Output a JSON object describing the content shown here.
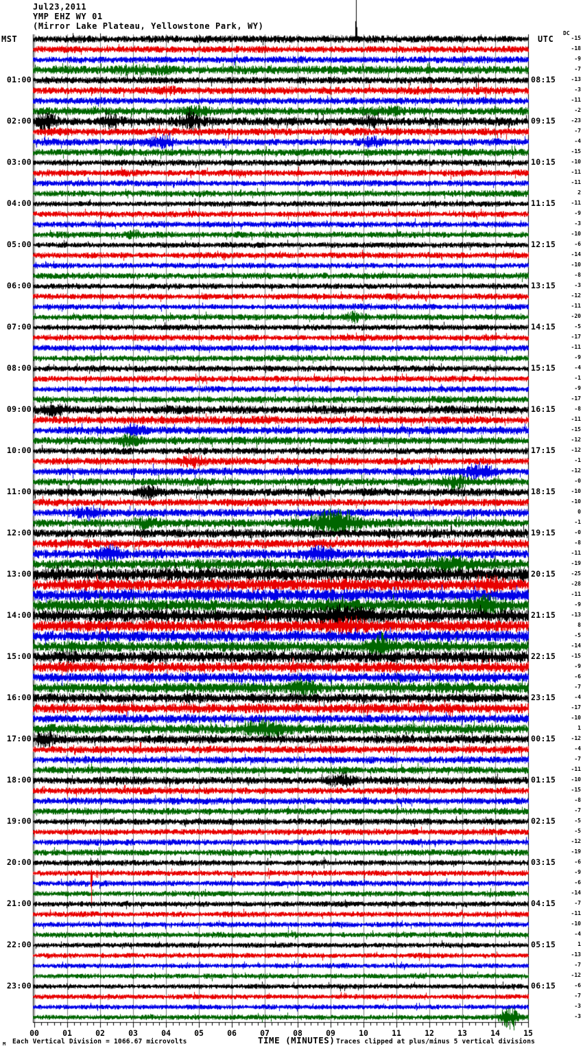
{
  "header": {
    "date": "Jul23,2011",
    "station": "YMP EHZ WY 01",
    "location": "(Mirror Lake Plateau, Yellowstone Park, WY)",
    "left_tz": "MST",
    "right_tz": "UTC",
    "dc_label": "DC"
  },
  "axis": {
    "title": "TIME (MINUTES)",
    "tick_labels": [
      "00",
      "01",
      "02",
      "03",
      "04",
      "05",
      "06",
      "07",
      "08",
      "09",
      "10",
      "11",
      "12",
      "13",
      "14",
      "15"
    ]
  },
  "footer": {
    "corner_mark": "M",
    "left_note": "Each Vertical Division = 1066.67 microvolts",
    "right_note": "Traces clipped at plus/minus 5 vertical divisions"
  },
  "chart_data": {
    "type": "seismogram_helicorder",
    "station": "YMP EHZ WY 01",
    "minutes_per_line": 15,
    "x_range_minutes": [
      0,
      15
    ],
    "lines": 96,
    "grid_on": true,
    "grid_color": "#7a7a7a",
    "colors_cycle": [
      "#000000",
      "#e80000",
      "#0000e8",
      "#006600"
    ],
    "rows": [
      {
        "mst": "",
        "utc": "",
        "dc": "-15"
      },
      {
        "mst": "",
        "utc": "",
        "dc": "-18"
      },
      {
        "mst": "",
        "utc": "",
        "dc": "-9"
      },
      {
        "mst": "",
        "utc": "",
        "dc": "-7"
      },
      {
        "mst": "01:00",
        "utc": "08:15",
        "dc": "-13"
      },
      {
        "mst": "",
        "utc": "",
        "dc": "-3"
      },
      {
        "mst": "",
        "utc": "",
        "dc": "-11"
      },
      {
        "mst": "",
        "utc": "",
        "dc": "-2"
      },
      {
        "mst": "02:00",
        "utc": "09:15",
        "dc": "-23"
      },
      {
        "mst": "",
        "utc": "",
        "dc": "-7"
      },
      {
        "mst": "",
        "utc": "",
        "dc": "-4"
      },
      {
        "mst": "",
        "utc": "",
        "dc": "-15"
      },
      {
        "mst": "03:00",
        "utc": "10:15",
        "dc": "-10"
      },
      {
        "mst": "",
        "utc": "",
        "dc": "-11"
      },
      {
        "mst": "",
        "utc": "",
        "dc": "-11"
      },
      {
        "mst": "",
        "utc": "",
        "dc": "2"
      },
      {
        "mst": "04:00",
        "utc": "11:15",
        "dc": "-11"
      },
      {
        "mst": "",
        "utc": "",
        "dc": "-9"
      },
      {
        "mst": "",
        "utc": "",
        "dc": "-3"
      },
      {
        "mst": "",
        "utc": "",
        "dc": "-10"
      },
      {
        "mst": "05:00",
        "utc": "12:15",
        "dc": "-6"
      },
      {
        "mst": "",
        "utc": "",
        "dc": "-14"
      },
      {
        "mst": "",
        "utc": "",
        "dc": "-10"
      },
      {
        "mst": "",
        "utc": "",
        "dc": "-8"
      },
      {
        "mst": "06:00",
        "utc": "13:15",
        "dc": "-3"
      },
      {
        "mst": "",
        "utc": "",
        "dc": "-12"
      },
      {
        "mst": "",
        "utc": "",
        "dc": "-11"
      },
      {
        "mst": "",
        "utc": "",
        "dc": "-20"
      },
      {
        "mst": "07:00",
        "utc": "14:15",
        "dc": "-5"
      },
      {
        "mst": "",
        "utc": "",
        "dc": "-17"
      },
      {
        "mst": "",
        "utc": "",
        "dc": "-11"
      },
      {
        "mst": "",
        "utc": "",
        "dc": "-9"
      },
      {
        "mst": "08:00",
        "utc": "15:15",
        "dc": "-4"
      },
      {
        "mst": "",
        "utc": "",
        "dc": "-1"
      },
      {
        "mst": "",
        "utc": "",
        "dc": "-9"
      },
      {
        "mst": "",
        "utc": "",
        "dc": "-17"
      },
      {
        "mst": "09:00",
        "utc": "16:15",
        "dc": "-8"
      },
      {
        "mst": "",
        "utc": "",
        "dc": "-11"
      },
      {
        "mst": "",
        "utc": "",
        "dc": "-15"
      },
      {
        "mst": "",
        "utc": "",
        "dc": "-12"
      },
      {
        "mst": "10:00",
        "utc": "17:15",
        "dc": "-12"
      },
      {
        "mst": "",
        "utc": "",
        "dc": "-1"
      },
      {
        "mst": "",
        "utc": "",
        "dc": "-12"
      },
      {
        "mst": "",
        "utc": "",
        "dc": "-0"
      },
      {
        "mst": "11:00",
        "utc": "18:15",
        "dc": "-10"
      },
      {
        "mst": "",
        "utc": "",
        "dc": "-10"
      },
      {
        "mst": "",
        "utc": "",
        "dc": "0"
      },
      {
        "mst": "",
        "utc": "",
        "dc": "-1"
      },
      {
        "mst": "12:00",
        "utc": "19:15",
        "dc": "-0"
      },
      {
        "mst": "",
        "utc": "",
        "dc": "-8"
      },
      {
        "mst": "",
        "utc": "",
        "dc": "-11"
      },
      {
        "mst": "",
        "utc": "",
        "dc": "-19"
      },
      {
        "mst": "13:00",
        "utc": "20:15",
        "dc": "-25"
      },
      {
        "mst": "",
        "utc": "",
        "dc": "-28"
      },
      {
        "mst": "",
        "utc": "",
        "dc": "-11"
      },
      {
        "mst": "",
        "utc": "",
        "dc": "-9"
      },
      {
        "mst": "14:00",
        "utc": "21:15",
        "dc": "-13"
      },
      {
        "mst": "",
        "utc": "",
        "dc": "8"
      },
      {
        "mst": "",
        "utc": "",
        "dc": "-5"
      },
      {
        "mst": "",
        "utc": "",
        "dc": "-14"
      },
      {
        "mst": "15:00",
        "utc": "22:15",
        "dc": "-15"
      },
      {
        "mst": "",
        "utc": "",
        "dc": "-9"
      },
      {
        "mst": "",
        "utc": "",
        "dc": "-6"
      },
      {
        "mst": "",
        "utc": "",
        "dc": "-7"
      },
      {
        "mst": "16:00",
        "utc": "23:15",
        "dc": "-4"
      },
      {
        "mst": "",
        "utc": "",
        "dc": "-17"
      },
      {
        "mst": "",
        "utc": "",
        "dc": "-10"
      },
      {
        "mst": "",
        "utc": "",
        "dc": "1"
      },
      {
        "mst": "17:00",
        "utc": "00:15",
        "dc": "-12"
      },
      {
        "mst": "",
        "utc": "",
        "dc": "-4"
      },
      {
        "mst": "",
        "utc": "",
        "dc": "-7"
      },
      {
        "mst": "",
        "utc": "",
        "dc": "-11"
      },
      {
        "mst": "18:00",
        "utc": "01:15",
        "dc": "-10"
      },
      {
        "mst": "",
        "utc": "",
        "dc": "-15"
      },
      {
        "mst": "",
        "utc": "",
        "dc": "-8"
      },
      {
        "mst": "",
        "utc": "",
        "dc": "-7"
      },
      {
        "mst": "19:00",
        "utc": "02:15",
        "dc": "-5"
      },
      {
        "mst": "",
        "utc": "",
        "dc": "-5"
      },
      {
        "mst": "",
        "utc": "",
        "dc": "-12"
      },
      {
        "mst": "",
        "utc": "",
        "dc": "-19"
      },
      {
        "mst": "20:00",
        "utc": "03:15",
        "dc": "-6"
      },
      {
        "mst": "",
        "utc": "",
        "dc": "-9"
      },
      {
        "mst": "",
        "utc": "",
        "dc": "-6"
      },
      {
        "mst": "",
        "utc": "",
        "dc": "-14"
      },
      {
        "mst": "21:00",
        "utc": "04:15",
        "dc": "-7"
      },
      {
        "mst": "",
        "utc": "",
        "dc": "-11"
      },
      {
        "mst": "",
        "utc": "",
        "dc": "-10"
      },
      {
        "mst": "",
        "utc": "",
        "dc": "-4"
      },
      {
        "mst": "22:00",
        "utc": "05:15",
        "dc": "1"
      },
      {
        "mst": "",
        "utc": "",
        "dc": "-13"
      },
      {
        "mst": "",
        "utc": "",
        "dc": "-7"
      },
      {
        "mst": "",
        "utc": "",
        "dc": "-12"
      },
      {
        "mst": "23:00",
        "utc": "06:15",
        "dc": "-6"
      },
      {
        "mst": "",
        "utc": "",
        "dc": "-7"
      },
      {
        "mst": "",
        "utc": "",
        "dc": "-3"
      },
      {
        "mst": "",
        "utc": "",
        "dc": "-3"
      }
    ],
    "row_amplitudes": [
      2.6,
      2.4,
      2.4,
      3.0,
      2.4,
      2.6,
      2.4,
      2.8,
      3.0,
      2.6,
      2.5,
      2.6,
      2.2,
      2.4,
      2.2,
      2.2,
      2.0,
      2.2,
      2.2,
      2.2,
      2.0,
      2.2,
      2.0,
      2.2,
      2.0,
      2.2,
      2.0,
      2.2,
      2.0,
      2.2,
      2.2,
      2.2,
      2.2,
      2.2,
      2.2,
      2.4,
      3.0,
      2.8,
      2.8,
      2.8,
      2.4,
      2.6,
      2.6,
      2.6,
      2.8,
      2.6,
      2.8,
      3.0,
      3.2,
      3.0,
      3.2,
      3.6,
      4.6,
      4.2,
      4.2,
      4.2,
      4.4,
      4.0,
      3.8,
      3.8,
      4.0,
      3.6,
      3.4,
      3.6,
      3.4,
      3.4,
      3.0,
      3.4,
      3.0,
      2.6,
      2.6,
      2.6,
      2.6,
      2.4,
      2.4,
      2.4,
      2.2,
      2.2,
      2.2,
      2.2,
      2.0,
      2.0,
      2.0,
      2.0,
      2.0,
      2.0,
      2.0,
      2.0,
      1.8,
      1.8,
      1.8,
      1.8,
      1.8,
      1.8,
      1.8,
      1.8
    ],
    "events": [
      {
        "row": 0,
        "min": 9.78,
        "type": "spike",
        "up": 58,
        "down": 4
      },
      {
        "row": 1,
        "min": 9.78,
        "type": "spike",
        "up": 4,
        "down": 4
      },
      {
        "row": 3,
        "min": 3.3,
        "w": 1.2,
        "amp": 2.5
      },
      {
        "row": 5,
        "min": 4.0,
        "w": 0.4,
        "amp": 2.5
      },
      {
        "row": 7,
        "min": 4.9,
        "w": 0.7,
        "amp": 2.5
      },
      {
        "row": 7,
        "min": 10.6,
        "w": 0.7,
        "amp": 2.0
      },
      {
        "row": 8,
        "min": 0.35,
        "w": 0.4,
        "amp": 7
      },
      {
        "row": 8,
        "min": 2.35,
        "w": 0.35,
        "amp": 5
      },
      {
        "row": 8,
        "min": 4.75,
        "w": 0.5,
        "amp": 6
      },
      {
        "row": 8,
        "min": 10.3,
        "w": 0.3,
        "amp": 4
      },
      {
        "row": 10,
        "min": 3.8,
        "w": 0.5,
        "amp": 3.5
      },
      {
        "row": 10,
        "min": 10.3,
        "w": 0.4,
        "amp": 3.5
      },
      {
        "row": 19,
        "min": 3.0,
        "w": 0.35,
        "amp": 2.5
      },
      {
        "row": 27,
        "min": 9.7,
        "w": 0.4,
        "amp": 2.5
      },
      {
        "row": 36,
        "min": 0.5,
        "w": 0.5,
        "amp": 3
      },
      {
        "row": 38,
        "min": 3.0,
        "w": 0.5,
        "amp": 3.5
      },
      {
        "row": 39,
        "min": 2.9,
        "w": 0.4,
        "amp": 4.5
      },
      {
        "row": 41,
        "min": 4.8,
        "w": 0.5,
        "amp": 3.5
      },
      {
        "row": 42,
        "min": 13.5,
        "w": 0.6,
        "amp": 5
      },
      {
        "row": 43,
        "min": 12.8,
        "w": 0.5,
        "amp": 4
      },
      {
        "row": 44,
        "min": 3.5,
        "w": 0.4,
        "amp": 4
      },
      {
        "row": 44,
        "min": 5.25,
        "type": "spike",
        "up": 13,
        "down": 9
      },
      {
        "row": 46,
        "min": 1.6,
        "w": 0.5,
        "amp": 4.5
      },
      {
        "row": 47,
        "min": 3.4,
        "w": 0.5,
        "amp": 3.5
      },
      {
        "row": 47,
        "min": 9.1,
        "w": 1.0,
        "amp": 10
      },
      {
        "row": 50,
        "min": 2.3,
        "w": 0.5,
        "amp": 4.5
      },
      {
        "row": 50,
        "min": 8.6,
        "w": 0.6,
        "amp": 4.5
      },
      {
        "row": 51,
        "min": 12.6,
        "w": 0.8,
        "amp": 4.5
      },
      {
        "row": 53,
        "min": 13.9,
        "w": 0.5,
        "amp": 5
      },
      {
        "row": 55,
        "min": 13.7,
        "w": 0.6,
        "amp": 6
      },
      {
        "row": 56,
        "min": 9.4,
        "w": 1.1,
        "amp": 5
      },
      {
        "row": 57,
        "min": 9.5,
        "w": 0.8,
        "amp": 4
      },
      {
        "row": 59,
        "min": 10.45,
        "w": 0.4,
        "amp": 8
      },
      {
        "row": 63,
        "min": 8.2,
        "w": 0.6,
        "amp": 4
      },
      {
        "row": 67,
        "min": 7.0,
        "w": 0.9,
        "amp": 6
      },
      {
        "row": 68,
        "min": 0.3,
        "w": 0.4,
        "amp": 5
      },
      {
        "row": 68,
        "min": 10.4,
        "type": "spike",
        "up": 11,
        "down": 7
      },
      {
        "row": 72,
        "min": 9.3,
        "w": 0.6,
        "amp": 3.5
      },
      {
        "row": 81,
        "min": 1.72,
        "type": "spike",
        "up": 5,
        "down": 44
      },
      {
        "row": 95,
        "min": 14.42,
        "w": 0.35,
        "amp": 11
      }
    ]
  }
}
